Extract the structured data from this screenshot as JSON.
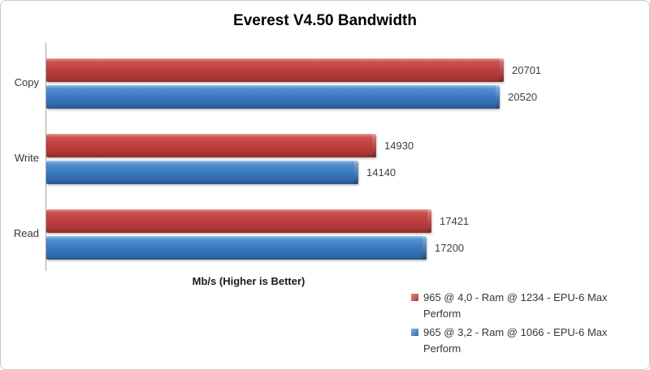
{
  "chart_data": {
    "type": "bar",
    "orientation": "horizontal",
    "title": "Everest V4.50 Bandwidth",
    "xlabel": "Mb/s (Higher is Better)",
    "categories": [
      "Copy",
      "Write",
      "Read"
    ],
    "series": [
      {
        "name": "965 @ 4,0 - Ram @ 1234 - EPU-6 Max Perform",
        "color": "#bd403e",
        "values": [
          20701,
          14930,
          17421
        ]
      },
      {
        "name": "965 @ 3,2 - Ram @ 1066 - EPU-6 Max Perform",
        "color": "#3d7cc4",
        "values": [
          20520,
          14140,
          17200
        ]
      }
    ],
    "xlim": [
      0,
      22000
    ],
    "grid": false,
    "legend_position": "bottom-right",
    "value_labels": true
  }
}
